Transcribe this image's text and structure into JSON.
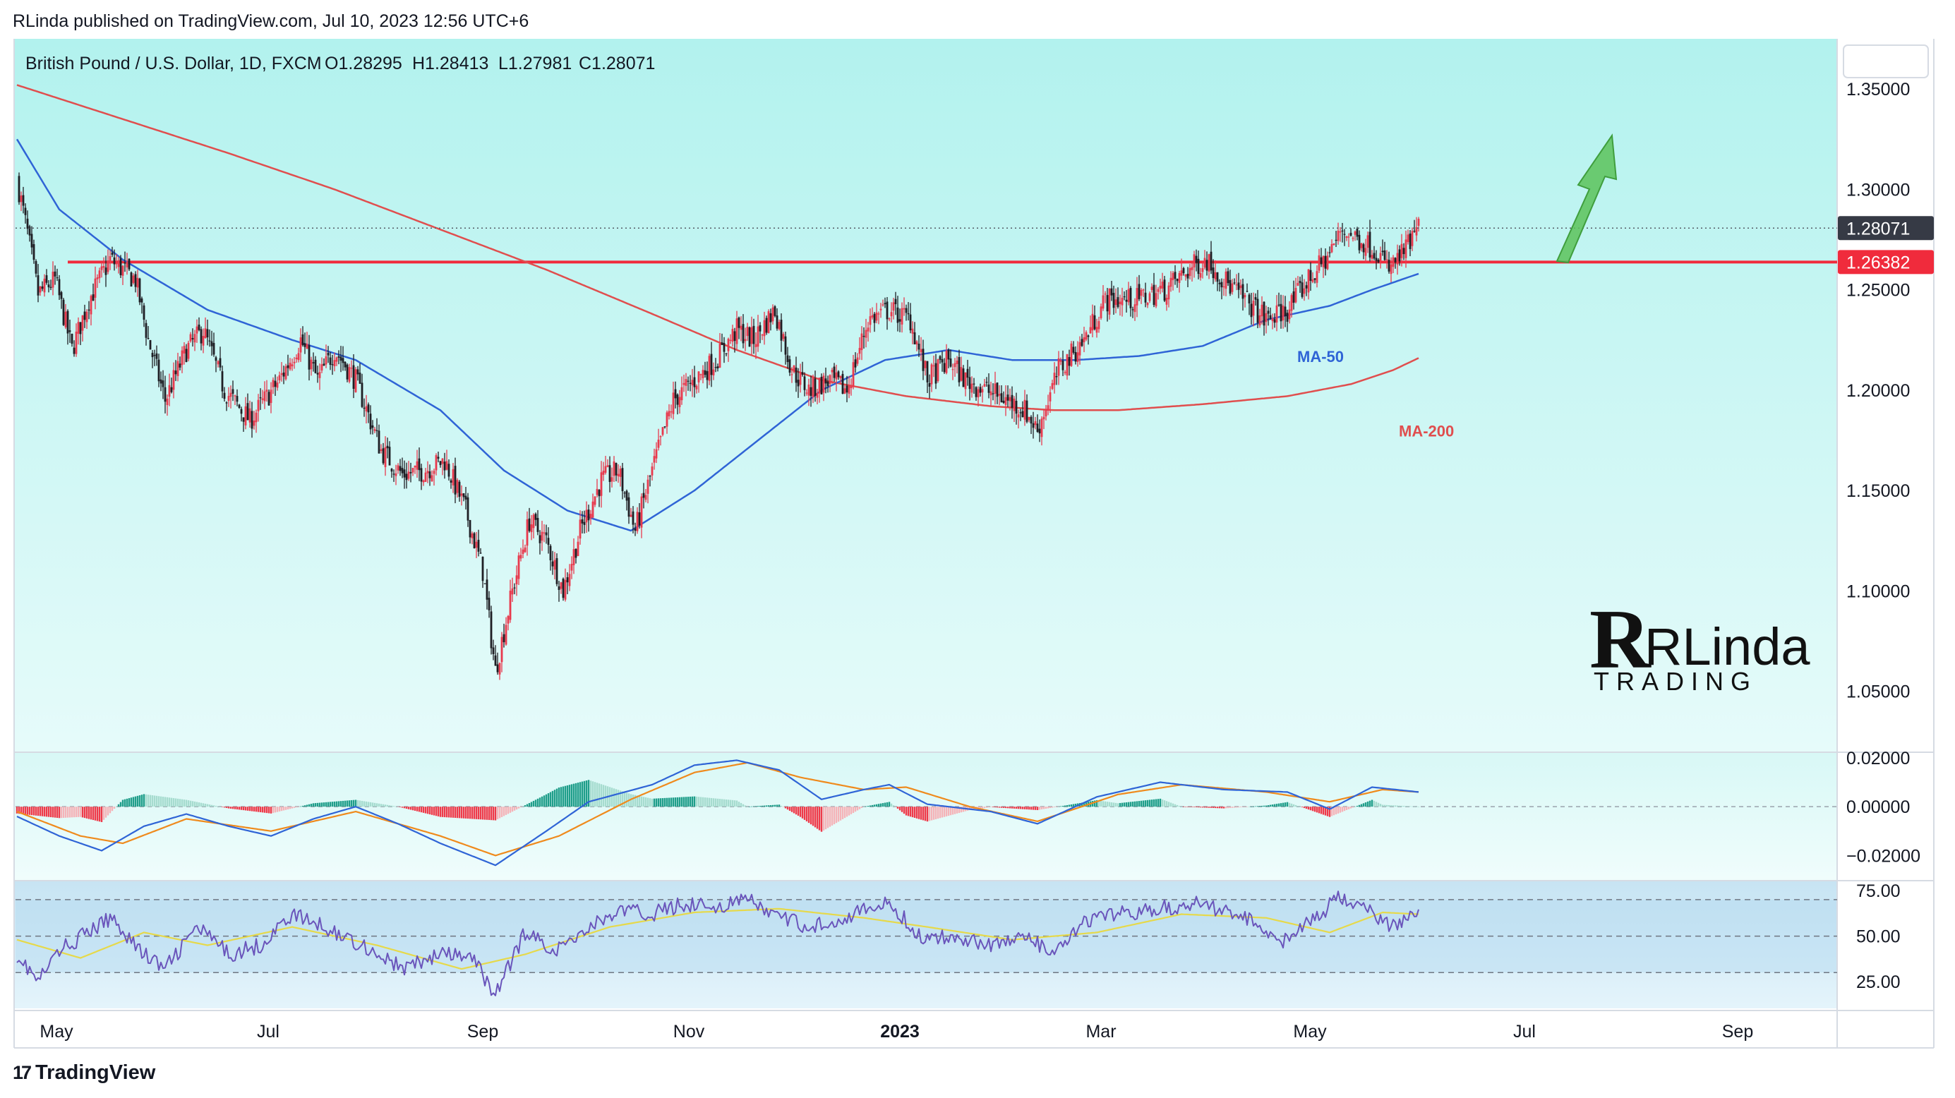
{
  "header": {
    "publisher_line": "RLinda published on TradingView.com, Jul 10, 2023 12:56 UTC+6"
  },
  "footer": {
    "brand": "TradingView"
  },
  "watermark": {
    "line1": "RLinda",
    "line2": "TRADING"
  },
  "colors": {
    "pane_bg": "#b2f2ee",
    "bull_candle": "#e8394d",
    "bear_candle": "#1e1e24",
    "ma50": "#2f64d6",
    "ma200": "#e04e4e",
    "level": "#f02b3c",
    "arrow": "#5cc25a",
    "macd_line": "#2f64d6",
    "signal_line": "#ef8a1c",
    "rsi_line": "#6a55bb",
    "rsi_ma": "#e6d94a"
  },
  "chart_data": [
    {
      "type": "candlestick",
      "title": "British Pound / U.S. Dollar, 1D, FXCM",
      "ohlc_header": {
        "open": "O1.28295",
        "high": "H1.28413",
        "low": "L1.27981",
        "close": "C1.28071"
      },
      "ylim": [
        1.02,
        1.375
      ],
      "y_ticks": [
        "1.35000",
        "1.30000",
        "1.25000",
        "1.20000",
        "1.15000",
        "1.10000",
        "1.05000"
      ],
      "last_price_label": "1.28071",
      "last_price": 1.28071,
      "level_label": "1.26382",
      "level": 1.26382,
      "x_ticks": [
        "May",
        "Jul",
        "Sep",
        "Nov",
        "2023",
        "Mar",
        "May",
        "Jul",
        "Sep"
      ],
      "price_path": [
        [
          0,
          1.305
        ],
        [
          5,
          1.278
        ],
        [
          10,
          1.248
        ],
        [
          18,
          1.255
        ],
        [
          26,
          1.22
        ],
        [
          34,
          1.245
        ],
        [
          44,
          1.265
        ],
        [
          56,
          1.255
        ],
        [
          62,
          1.225
        ],
        [
          70,
          1.195
        ],
        [
          80,
          1.22
        ],
        [
          88,
          1.23
        ],
        [
          98,
          1.2
        ],
        [
          110,
          1.185
        ],
        [
          124,
          1.205
        ],
        [
          134,
          1.225
        ],
        [
          142,
          1.205
        ],
        [
          150,
          1.22
        ],
        [
          160,
          1.205
        ],
        [
          172,
          1.17
        ],
        [
          182,
          1.158
        ],
        [
          192,
          1.16
        ],
        [
          202,
          1.165
        ],
        [
          212,
          1.14
        ],
        [
          220,
          1.11
        ],
        [
          226,
          1.06
        ],
        [
          234,
          1.1
        ],
        [
          242,
          1.135
        ],
        [
          250,
          1.125
        ],
        [
          258,
          1.1
        ],
        [
          266,
          1.13
        ],
        [
          276,
          1.155
        ],
        [
          284,
          1.16
        ],
        [
          292,
          1.13
        ],
        [
          300,
          1.16
        ],
        [
          310,
          1.195
        ],
        [
          320,
          1.205
        ],
        [
          330,
          1.215
        ],
        [
          340,
          1.23
        ],
        [
          348,
          1.225
        ],
        [
          358,
          1.24
        ],
        [
          366,
          1.21
        ],
        [
          374,
          1.2
        ],
        [
          384,
          1.205
        ],
        [
          392,
          1.2
        ],
        [
          402,
          1.235
        ],
        [
          412,
          1.24
        ],
        [
          422,
          1.235
        ],
        [
          430,
          1.205
        ],
        [
          440,
          1.215
        ],
        [
          448,
          1.205
        ],
        [
          458,
          1.2
        ],
        [
          468,
          1.195
        ],
        [
          476,
          1.19
        ],
        [
          482,
          1.18
        ],
        [
          492,
          1.21
        ],
        [
          504,
          1.225
        ],
        [
          514,
          1.245
        ],
        [
          528,
          1.245
        ],
        [
          542,
          1.25
        ],
        [
          556,
          1.262
        ],
        [
          562,
          1.265
        ],
        [
          570,
          1.255
        ],
        [
          580,
          1.245
        ],
        [
          590,
          1.235
        ],
        [
          600,
          1.24
        ],
        [
          610,
          1.255
        ],
        [
          618,
          1.265
        ],
        [
          626,
          1.28
        ],
        [
          634,
          1.275
        ],
        [
          642,
          1.27
        ],
        [
          648,
          1.26
        ],
        [
          656,
          1.27
        ],
        [
          662,
          1.28071
        ]
      ],
      "series": [
        {
          "name": "MA-50",
          "points": [
            [
              0,
              1.325
            ],
            [
              20,
              1.29
            ],
            [
              50,
              1.265
            ],
            [
              90,
              1.24
            ],
            [
              130,
              1.225
            ],
            [
              160,
              1.215
            ],
            [
              200,
              1.19
            ],
            [
              230,
              1.16
            ],
            [
              260,
              1.14
            ],
            [
              290,
              1.13
            ],
            [
              320,
              1.15
            ],
            [
              350,
              1.175
            ],
            [
              380,
              1.2
            ],
            [
              410,
              1.215
            ],
            [
              440,
              1.22
            ],
            [
              470,
              1.215
            ],
            [
              500,
              1.215
            ],
            [
              530,
              1.217
            ],
            [
              560,
              1.222
            ],
            [
              590,
              1.235
            ],
            [
              620,
              1.242
            ],
            [
              640,
              1.25
            ],
            [
              662,
              1.258
            ]
          ]
        },
        {
          "name": "MA-200",
          "points": [
            [
              0,
              1.352
            ],
            [
              50,
              1.335
            ],
            [
              100,
              1.318
            ],
            [
              150,
              1.3
            ],
            [
              200,
              1.28
            ],
            [
              250,
              1.26
            ],
            [
              300,
              1.238
            ],
            [
              340,
              1.22
            ],
            [
              380,
              1.205
            ],
            [
              420,
              1.197
            ],
            [
              460,
              1.192
            ],
            [
              490,
              1.19
            ],
            [
              520,
              1.19
            ],
            [
              560,
              1.193
            ],
            [
              600,
              1.197
            ],
            [
              630,
              1.203
            ],
            [
              650,
              1.21
            ],
            [
              662,
              1.216
            ]
          ]
        }
      ]
    },
    {
      "type": "macd",
      "ylim": [
        -0.03,
        0.022
      ],
      "y_ticks": [
        "0.02000",
        "0.00000",
        "−0.02000"
      ],
      "macd_points": [
        [
          0,
          -0.004
        ],
        [
          20,
          -0.012
        ],
        [
          40,
          -0.018
        ],
        [
          60,
          -0.008
        ],
        [
          80,
          -0.003
        ],
        [
          100,
          -0.008
        ],
        [
          120,
          -0.012
        ],
        [
          140,
          -0.005
        ],
        [
          160,
          0.0
        ],
        [
          180,
          -0.007
        ],
        [
          200,
          -0.015
        ],
        [
          226,
          -0.024
        ],
        [
          250,
          -0.01
        ],
        [
          270,
          0.002
        ],
        [
          300,
          0.009
        ],
        [
          320,
          0.017
        ],
        [
          340,
          0.019
        ],
        [
          360,
          0.015
        ],
        [
          380,
          0.003
        ],
        [
          400,
          0.007
        ],
        [
          412,
          0.009
        ],
        [
          430,
          0.001
        ],
        [
          460,
          -0.002
        ],
        [
          482,
          -0.007
        ],
        [
          510,
          0.004
        ],
        [
          540,
          0.01
        ],
        [
          570,
          0.007
        ],
        [
          600,
          0.006
        ],
        [
          620,
          -0.001
        ],
        [
          640,
          0.008
        ],
        [
          662,
          0.006
        ]
      ],
      "signal_points": [
        [
          0,
          -0.002
        ],
        [
          30,
          -0.012
        ],
        [
          50,
          -0.015
        ],
        [
          80,
          -0.005
        ],
        [
          120,
          -0.01
        ],
        [
          160,
          -0.002
        ],
        [
          200,
          -0.012
        ],
        [
          226,
          -0.02
        ],
        [
          256,
          -0.012
        ],
        [
          290,
          0.003
        ],
        [
          320,
          0.014
        ],
        [
          345,
          0.018
        ],
        [
          370,
          0.012
        ],
        [
          400,
          0.007
        ],
        [
          420,
          0.008
        ],
        [
          450,
          0.0
        ],
        [
          482,
          -0.006
        ],
        [
          520,
          0.005
        ],
        [
          550,
          0.009
        ],
        [
          590,
          0.006
        ],
        [
          620,
          0.002
        ],
        [
          645,
          0.007
        ],
        [
          662,
          0.006
        ]
      ]
    },
    {
      "type": "rsi",
      "ylim": [
        10,
        80
      ],
      "y_ticks": [
        "75.00",
        "50.00",
        "25.00"
      ],
      "bands": [
        70,
        50,
        30
      ],
      "rsi_points": [
        [
          0,
          40
        ],
        [
          10,
          25
        ],
        [
          20,
          42
        ],
        [
          35,
          53
        ],
        [
          45,
          60
        ],
        [
          60,
          40
        ],
        [
          70,
          32
        ],
        [
          85,
          55
        ],
        [
          100,
          40
        ],
        [
          115,
          45
        ],
        [
          130,
          62
        ],
        [
          145,
          55
        ],
        [
          165,
          44
        ],
        [
          182,
          32
        ],
        [
          200,
          40
        ],
        [
          215,
          38
        ],
        [
          226,
          18
        ],
        [
          240,
          52
        ],
        [
          255,
          42
        ],
        [
          270,
          55
        ],
        [
          285,
          64
        ],
        [
          300,
          62
        ],
        [
          315,
          68
        ],
        [
          330,
          66
        ],
        [
          345,
          70
        ],
        [
          360,
          60
        ],
        [
          375,
          55
        ],
        [
          395,
          62
        ],
        [
          412,
          68
        ],
        [
          428,
          48
        ],
        [
          445,
          50
        ],
        [
          460,
          45
        ],
        [
          475,
          50
        ],
        [
          490,
          40
        ],
        [
          505,
          58
        ],
        [
          520,
          62
        ],
        [
          540,
          65
        ],
        [
          560,
          68
        ],
        [
          580,
          60
        ],
        [
          598,
          48
        ],
        [
          612,
          58
        ],
        [
          625,
          72
        ],
        [
          640,
          62
        ],
        [
          650,
          55
        ],
        [
          662,
          65
        ]
      ],
      "rsi_ma_points": [
        [
          0,
          48
        ],
        [
          30,
          38
        ],
        [
          60,
          52
        ],
        [
          90,
          45
        ],
        [
          130,
          55
        ],
        [
          170,
          45
        ],
        [
          210,
          32
        ],
        [
          240,
          40
        ],
        [
          280,
          55
        ],
        [
          320,
          63
        ],
        [
          360,
          65
        ],
        [
          400,
          60
        ],
        [
          430,
          55
        ],
        [
          470,
          48
        ],
        [
          510,
          52
        ],
        [
          550,
          62
        ],
        [
          590,
          60
        ],
        [
          620,
          52
        ],
        [
          645,
          63
        ],
        [
          662,
          62
        ]
      ]
    }
  ]
}
